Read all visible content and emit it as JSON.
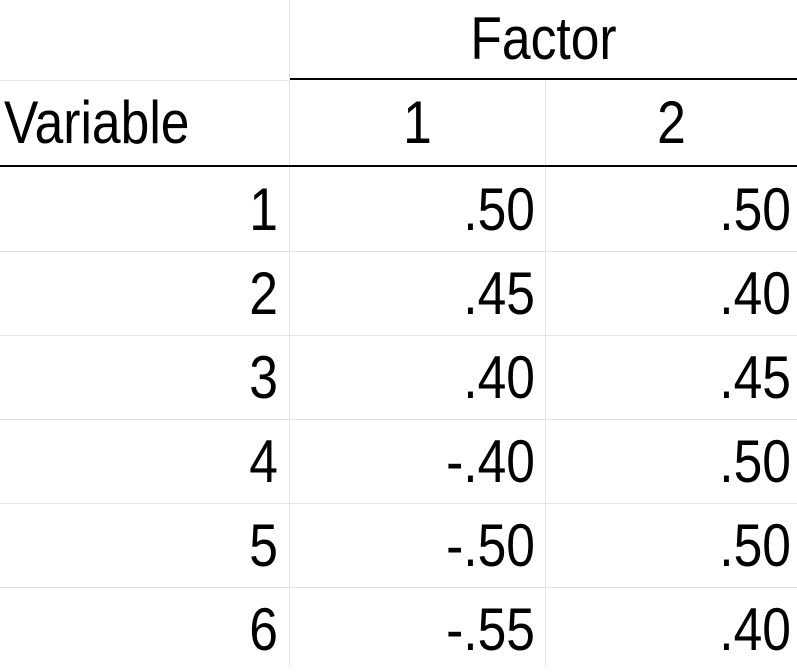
{
  "table": {
    "spanning_header": "Factor",
    "stub_header": "Variable",
    "factor_columns": [
      "1",
      "2"
    ],
    "rows": [
      {
        "variable": "1",
        "f1": ".50",
        "f2": ".50"
      },
      {
        "variable": "2",
        "f1": ".45",
        "f2": ".40"
      },
      {
        "variable": "3",
        "f1": ".40",
        "f2": ".45"
      },
      {
        "variable": "4",
        "f1": "-.40",
        "f2": ".50"
      },
      {
        "variable": "5",
        "f1": "-.50",
        "f2": ".50"
      },
      {
        "variable": "6",
        "f1": "-.55",
        "f2": ".40"
      }
    ]
  }
}
